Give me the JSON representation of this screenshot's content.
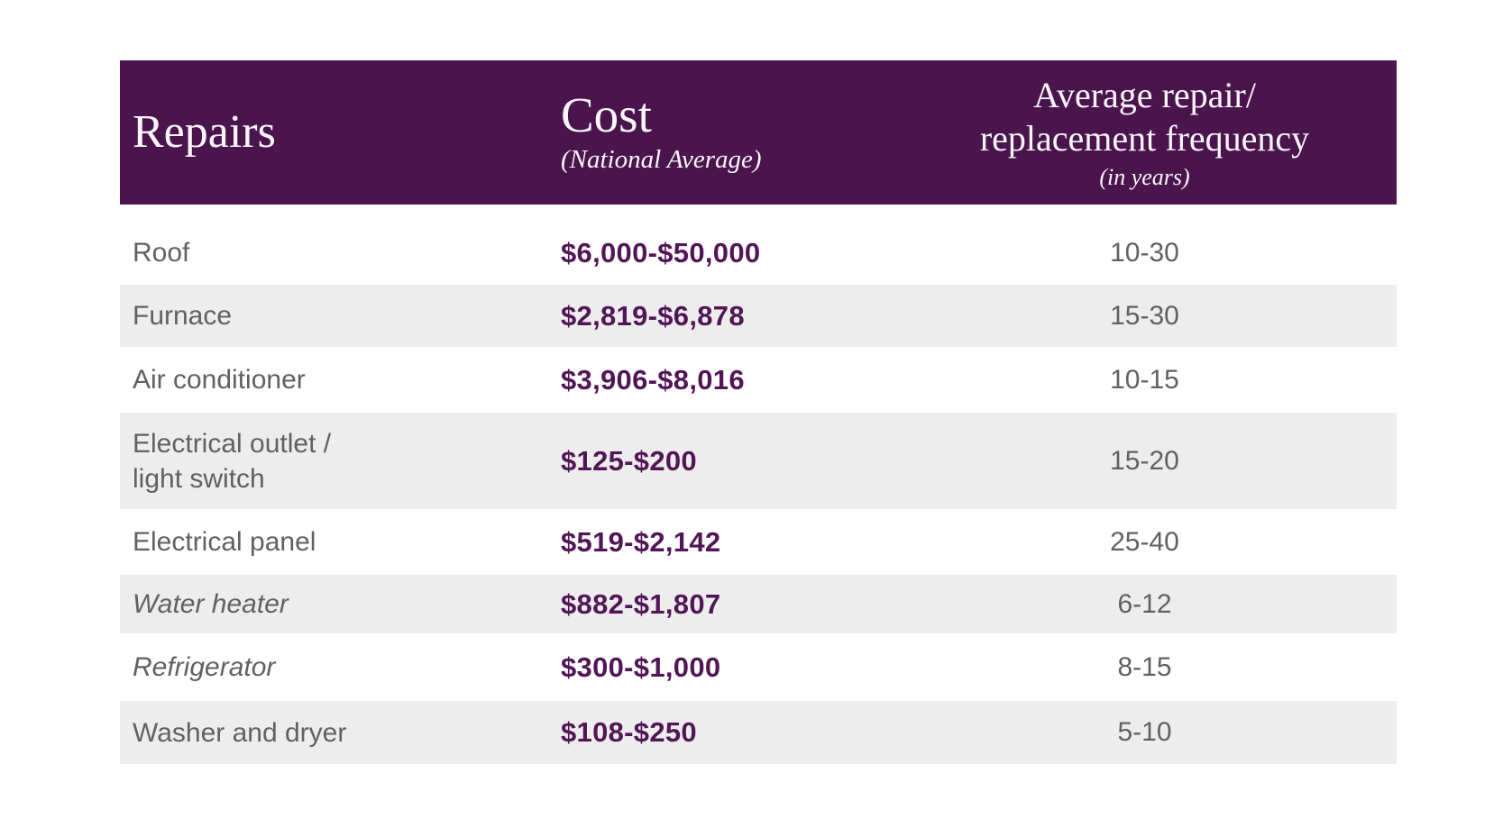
{
  "colors": {
    "header_bg": "#4a154d",
    "header_text": "#fbf6fb",
    "cost_text": "#521556",
    "row_stripe": "#ededed",
    "body_text": "#606164"
  },
  "header": {
    "repairs_label": "Repairs",
    "cost_label": "Cost",
    "cost_sublabel": "(National Average)",
    "freq_line1": "Average repair/",
    "freq_line2": "replacement frequency",
    "freq_sublabel": "(in years)"
  },
  "rows": [
    {
      "name": "Roof",
      "cost": "$6,000-$50,000",
      "frequency": "10-30"
    },
    {
      "name": "Furnace",
      "cost": "$2,819-$6,878",
      "frequency": "15-30"
    },
    {
      "name": "Air conditioner",
      "cost": "$3,906-$8,016",
      "frequency": "10-15"
    },
    {
      "name": "Electrical outlet / light switch",
      "name_line1": "Electrical outlet /",
      "name_line2": "light switch",
      "cost": "$125-$200",
      "frequency": "15-20"
    },
    {
      "name": "Electrical panel",
      "cost": "$519-$2,142",
      "frequency": "25-40"
    },
    {
      "name": "Water heater",
      "cost": "$882-$1,807",
      "frequency": "6-12"
    },
    {
      "name": "Refrigerator",
      "cost": "$300-$1,000",
      "frequency": "8-15"
    },
    {
      "name": "Washer and dryer",
      "cost": "$108-$250",
      "frequency": "5-10"
    }
  ],
  "chart_data": {
    "type": "table",
    "columns": [
      "Repairs",
      "Cost (National Average)",
      "Average repair/replacement frequency (in years)"
    ],
    "rows": [
      [
        "Roof",
        "$6,000-$50,000",
        "10-30"
      ],
      [
        "Furnace",
        "$2,819-$6,878",
        "15-30"
      ],
      [
        "Air conditioner",
        "$3,906-$8,016",
        "10-15"
      ],
      [
        "Electrical outlet / light switch",
        "$125-$200",
        "15-20"
      ],
      [
        "Electrical panel",
        "$519-$2,142",
        "25-40"
      ],
      [
        "Water heater",
        "$882-$1,807",
        "6-12"
      ],
      [
        "Refrigerator",
        "$300-$1,000",
        "8-15"
      ],
      [
        "Washer and dryer",
        "$108-$250",
        "5-10"
      ]
    ],
    "layout_hints": {
      "header_style": "dark-plum band, white serif text",
      "zebra_striping": "alternating white / light-gray starting white",
      "italic_row_names": [
        "Water heater",
        "Refrigerator"
      ],
      "column_alignment": [
        "left",
        "left",
        "center"
      ]
    }
  }
}
